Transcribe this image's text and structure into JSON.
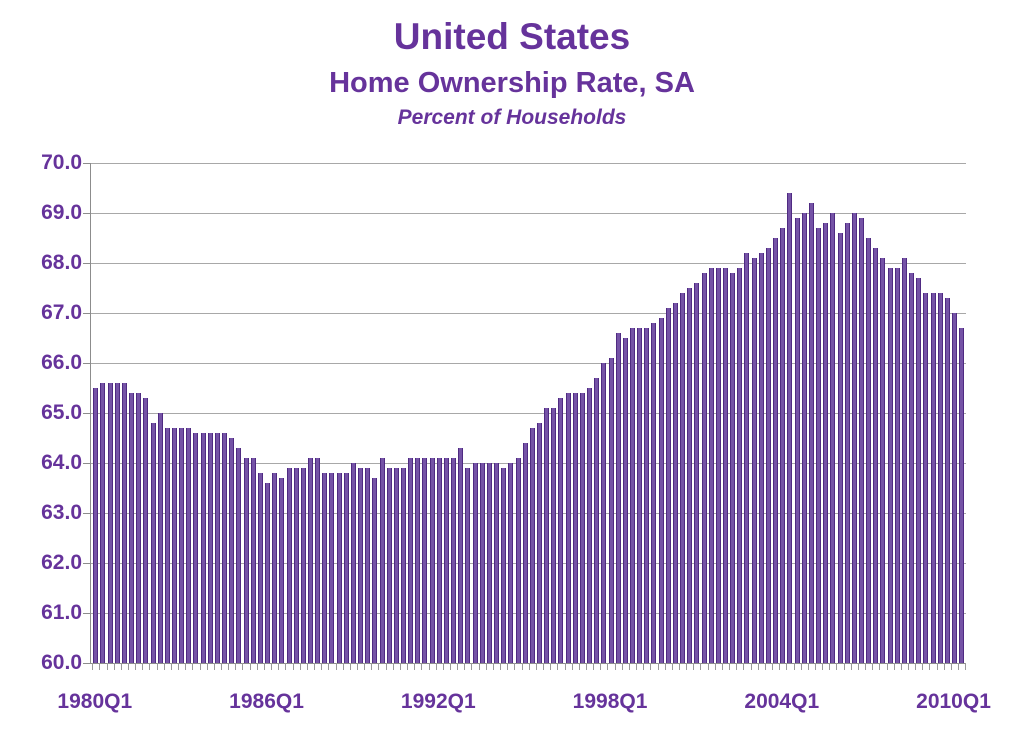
{
  "header": {
    "title": "United States",
    "subtitle": "Home Ownership Rate, SA",
    "unit_label": "Percent of Households"
  },
  "colors": {
    "text_purple": "#66339b",
    "bar_fill": "#7553a6",
    "bar_edge": "#4f2a82",
    "gridline": "#a8a8a8",
    "axis": "#8c8c8c",
    "background": "#ffffff"
  },
  "chart_data": {
    "type": "bar",
    "title": "United States",
    "subtitle": "Home Ownership Rate, SA",
    "ylabel": "Percent of Households",
    "ylim": [
      60.0,
      70.0
    ],
    "ytick_step": 1.0,
    "ytick_labels": [
      "60.0",
      "61.0",
      "62.0",
      "63.0",
      "64.0",
      "65.0",
      "66.0",
      "67.0",
      "68.0",
      "69.0",
      "70.0"
    ],
    "xtick_labels": [
      "1980Q1",
      "1986Q1",
      "1992Q1",
      "1998Q1",
      "2004Q1",
      "2010Q1"
    ],
    "xtick_label_every": 24,
    "start_quarter": "1980Q1",
    "end_quarter": "2010Q2",
    "frequency": "quarterly",
    "grid": "horizontal",
    "legend": "none",
    "values": [
      65.5,
      65.6,
      65.6,
      65.6,
      65.6,
      65.4,
      65.4,
      65.3,
      64.8,
      65.0,
      64.7,
      64.7,
      64.7,
      64.7,
      64.6,
      64.6,
      64.6,
      64.6,
      64.6,
      64.5,
      64.3,
      64.1,
      64.1,
      63.8,
      63.6,
      63.8,
      63.7,
      63.9,
      63.9,
      63.9,
      64.1,
      64.1,
      63.8,
      63.8,
      63.8,
      63.8,
      64.0,
      63.9,
      63.9,
      63.7,
      64.1,
      63.9,
      63.9,
      63.9,
      64.1,
      64.1,
      64.1,
      64.1,
      64.1,
      64.1,
      64.1,
      64.3,
      63.9,
      64.0,
      64.0,
      64.0,
      64.0,
      63.9,
      64.0,
      64.1,
      64.4,
      64.7,
      64.8,
      65.1,
      65.1,
      65.3,
      65.4,
      65.4,
      65.4,
      65.5,
      65.7,
      66.0,
      66.1,
      66.6,
      66.5,
      66.7,
      66.7,
      66.7,
      66.8,
      66.9,
      67.1,
      67.2,
      67.4,
      67.5,
      67.6,
      67.8,
      67.9,
      67.9,
      67.9,
      67.8,
      67.9,
      68.2,
      68.1,
      68.2,
      68.3,
      68.5,
      68.7,
      69.4,
      68.9,
      69.0,
      69.2,
      68.7,
      68.8,
      69.0,
      68.6,
      68.8,
      69.0,
      68.9,
      68.5,
      68.3,
      68.1,
      67.9,
      67.9,
      68.1,
      67.8,
      67.7,
      67.4,
      67.4,
      67.4,
      67.3,
      67.0,
      66.7
    ]
  }
}
